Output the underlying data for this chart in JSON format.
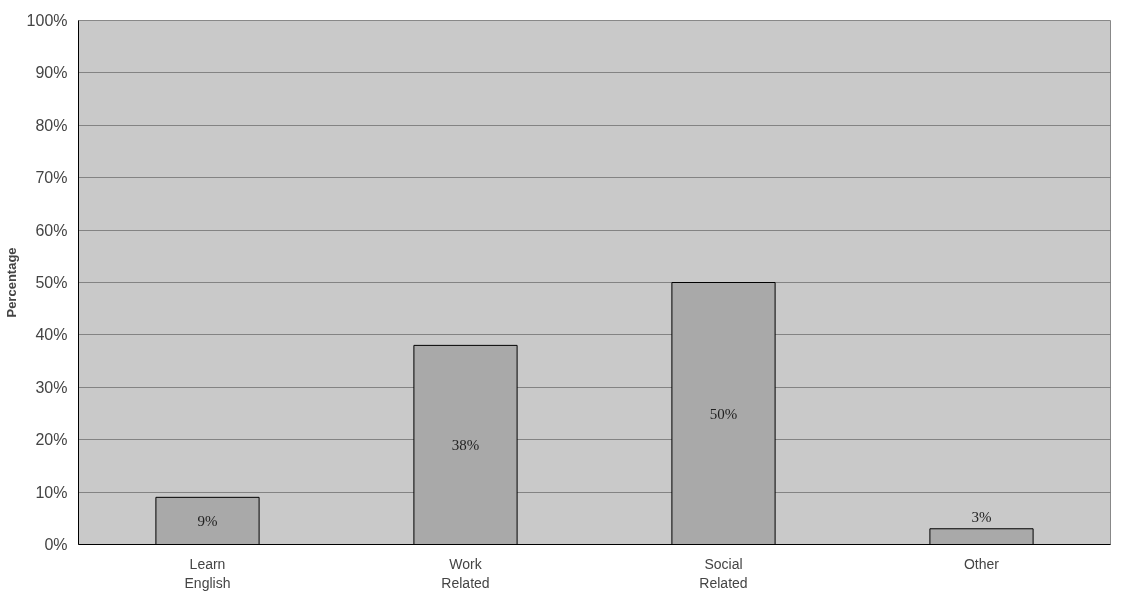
{
  "chart_data": {
    "type": "bar",
    "ylabel": "Percentage",
    "categories": [
      "Learn\nEnglish",
      "Work\nRelated",
      "Social\nRelated",
      "Other"
    ],
    "values": [
      9,
      38,
      50,
      3
    ],
    "color": "#a9a9a9",
    "value_labels": [
      "9%",
      "38%",
      "50%",
      "3%"
    ],
    "ylim": [
      0,
      100
    ],
    "yticks": [
      {
        "value": 0,
        "label": "0%"
      },
      {
        "value": 10,
        "label": "10%"
      },
      {
        "value": 20,
        "label": "20%"
      },
      {
        "value": 30,
        "label": "30%"
      },
      {
        "value": 40,
        "label": "40%"
      },
      {
        "value": 50,
        "label": "50%"
      },
      {
        "value": 60,
        "label": "60%"
      },
      {
        "value": 70,
        "label": "70%"
      },
      {
        "value": 80,
        "label": "80%"
      },
      {
        "value": 90,
        "label": "90%"
      },
      {
        "value": 100,
        "label": "100%"
      }
    ],
    "grid": "y"
  }
}
